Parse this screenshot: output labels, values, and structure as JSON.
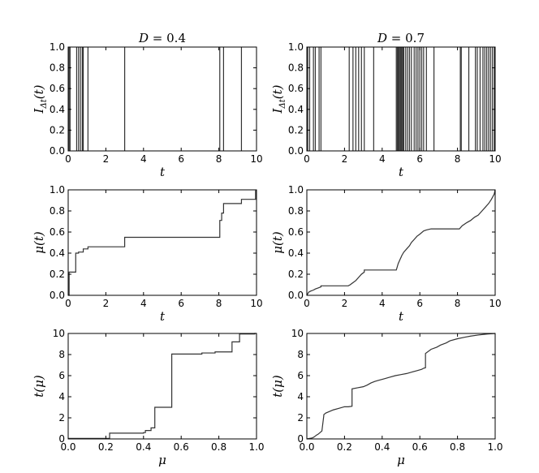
{
  "figure": {
    "line_color": "#333333",
    "background": "#ffffff"
  },
  "chart_data": [
    {
      "id": "top-left",
      "type": "line",
      "title": "D = 0.4",
      "title_var": "D",
      "title_rest": " = 0.4",
      "xlabel": "t",
      "ylabel": "IΔt(t)",
      "xlim": [
        0,
        10
      ],
      "ylim": [
        0,
        1
      ],
      "xticks": [
        0,
        2,
        4,
        6,
        8,
        10
      ],
      "xtick_labels": [
        "0",
        "2",
        "4",
        "6",
        "8",
        "10"
      ],
      "yticks": [
        0,
        0.2,
        0.4,
        0.6,
        0.8,
        1
      ],
      "ytick_labels": [
        "0.0",
        "0.2",
        "0.4",
        "0.6",
        "0.8",
        "1.0"
      ],
      "spikes": [
        0.05,
        0.1,
        0.45,
        0.55,
        0.65,
        0.75,
        0.8,
        1.05,
        3.0,
        8.05,
        8.25,
        9.2
      ],
      "grid": false,
      "legend": "none"
    },
    {
      "id": "top-right",
      "type": "line",
      "title": "D = 0.7",
      "title_var": "D",
      "title_rest": " = 0.7",
      "xlabel": "t",
      "ylabel": "IΔt(t)",
      "xlim": [
        0,
        10
      ],
      "ylim": [
        0,
        1
      ],
      "xticks": [
        0,
        2,
        4,
        6,
        8,
        10
      ],
      "xtick_labels": [
        "0",
        "2",
        "4",
        "6",
        "8",
        "10"
      ],
      "yticks": [
        0,
        0.2,
        0.4,
        0.6,
        0.8,
        1
      ],
      "ytick_labels": [
        "0.0",
        "0.2",
        "0.4",
        "0.6",
        "0.8",
        "1.0"
      ],
      "spikes": [
        0.05,
        0.15,
        0.35,
        0.45,
        0.65,
        0.75,
        2.25,
        2.45,
        2.6,
        2.75,
        2.9,
        3.05,
        3.55,
        4.75,
        4.8,
        4.85,
        4.9,
        4.95,
        5.0,
        5.05,
        5.1,
        5.15,
        5.25,
        5.35,
        5.45,
        5.55,
        5.7,
        5.8,
        5.9,
        6.0,
        6.1,
        6.2,
        6.35,
        6.75,
        8.15,
        8.2,
        8.6,
        8.95,
        9.05,
        9.2,
        9.35,
        9.45,
        9.55,
        9.65,
        9.75,
        9.85,
        9.95
      ],
      "grid": false,
      "legend": "none"
    },
    {
      "id": "mid-left",
      "type": "line",
      "xlabel": "t",
      "ylabel": "μ(t)",
      "xlim": [
        0,
        10
      ],
      "ylim": [
        0,
        1
      ],
      "xticks": [
        0,
        2,
        4,
        6,
        8,
        10
      ],
      "xtick_labels": [
        "0",
        "2",
        "4",
        "6",
        "8",
        "10"
      ],
      "yticks": [
        0,
        0.2,
        0.4,
        0.6,
        0.8,
        1
      ],
      "ytick_labels": [
        "0.0",
        "0.2",
        "0.4",
        "0.6",
        "0.8",
        "1.0"
      ],
      "x": [
        0,
        0.05,
        0.05,
        0.4,
        0.4,
        0.55,
        0.55,
        0.8,
        0.8,
        1.05,
        1.05,
        3.0,
        3.0,
        8.05,
        8.05,
        8.15,
        8.15,
        8.25,
        8.25,
        9.2,
        9.2,
        9.95,
        9.95,
        10
      ],
      "y": [
        0,
        0,
        0.22,
        0.22,
        0.4,
        0.4,
        0.41,
        0.41,
        0.44,
        0.44,
        0.46,
        0.46,
        0.55,
        0.55,
        0.71,
        0.71,
        0.78,
        0.78,
        0.87,
        0.87,
        0.91,
        0.91,
        0.99,
        1.0
      ],
      "grid": false,
      "legend": "none"
    },
    {
      "id": "mid-right",
      "type": "line",
      "xlabel": "t",
      "ylabel": "μ(t)",
      "xlim": [
        0,
        10
      ],
      "ylim": [
        0,
        1
      ],
      "xticks": [
        0,
        2,
        4,
        6,
        8,
        10
      ],
      "xtick_labels": [
        "0",
        "2",
        "4",
        "6",
        "8",
        "10"
      ],
      "yticks": [
        0,
        0.2,
        0.4,
        0.6,
        0.8,
        1
      ],
      "ytick_labels": [
        "0.0",
        "0.2",
        "0.4",
        "0.6",
        "0.8",
        "1.0"
      ],
      "x": [
        0,
        0.1,
        0.2,
        0.35,
        0.45,
        0.6,
        0.75,
        0.75,
        2.2,
        2.3,
        2.45,
        2.6,
        2.75,
        2.9,
        3.05,
        3.05,
        4.75,
        4.8,
        4.85,
        4.9,
        4.95,
        5.0,
        5.05,
        5.15,
        5.3,
        5.45,
        5.55,
        5.7,
        5.85,
        6.0,
        6.2,
        6.35,
        6.6,
        6.75,
        8.1,
        8.25,
        8.5,
        8.7,
        8.9,
        9.1,
        9.3,
        9.5,
        9.65,
        9.8,
        9.95,
        10
      ],
      "y": [
        0,
        0.03,
        0.04,
        0.05,
        0.06,
        0.07,
        0.08,
        0.09,
        0.09,
        0.1,
        0.12,
        0.14,
        0.17,
        0.2,
        0.22,
        0.24,
        0.24,
        0.27,
        0.3,
        0.32,
        0.34,
        0.36,
        0.38,
        0.41,
        0.44,
        0.47,
        0.5,
        0.53,
        0.56,
        0.58,
        0.61,
        0.62,
        0.63,
        0.63,
        0.63,
        0.66,
        0.69,
        0.71,
        0.74,
        0.76,
        0.8,
        0.84,
        0.87,
        0.91,
        0.96,
        1.0
      ],
      "grid": false,
      "legend": "none"
    },
    {
      "id": "bottom-left",
      "type": "line",
      "xlabel": "μ",
      "ylabel": "t(μ)",
      "xlim": [
        0,
        1
      ],
      "ylim": [
        0,
        10
      ],
      "xticks": [
        0,
        0.2,
        0.4,
        0.6,
        0.8,
        1
      ],
      "xtick_labels": [
        "0.0",
        "0.2",
        "0.4",
        "0.6",
        "0.8",
        "1.0"
      ],
      "yticks": [
        0,
        2,
        4,
        6,
        8,
        10
      ],
      "ytick_labels": [
        "0",
        "2",
        "4",
        "6",
        "8",
        "10"
      ],
      "x": [
        0,
        0.22,
        0.22,
        0.4,
        0.4,
        0.41,
        0.41,
        0.44,
        0.44,
        0.46,
        0.46,
        0.55,
        0.55,
        0.71,
        0.71,
        0.78,
        0.78,
        0.87,
        0.87,
        0.91,
        0.91,
        0.99,
        0.99,
        1.0
      ],
      "y": [
        0.05,
        0.05,
        0.55,
        0.55,
        0.6,
        0.6,
        0.8,
        0.8,
        1.05,
        1.05,
        3.0,
        3.0,
        8.05,
        8.05,
        8.15,
        8.15,
        8.25,
        8.25,
        9.2,
        9.2,
        9.95,
        9.95,
        10.0,
        10.0
      ],
      "grid": false,
      "legend": "none"
    },
    {
      "id": "bottom-right",
      "type": "line",
      "xlabel": "μ",
      "ylabel": "t(μ)",
      "xlim": [
        0,
        1
      ],
      "ylim": [
        0,
        10
      ],
      "xticks": [
        0,
        0.2,
        0.4,
        0.6,
        0.8,
        1
      ],
      "xtick_labels": [
        "0.0",
        "0.2",
        "0.4",
        "0.6",
        "0.8",
        "1.0"
      ],
      "yticks": [
        0,
        2,
        4,
        6,
        8,
        10
      ],
      "ytick_labels": [
        "0",
        "2",
        "4",
        "6",
        "8",
        "10"
      ],
      "x": [
        0,
        0.03,
        0.04,
        0.05,
        0.06,
        0.07,
        0.08,
        0.09,
        0.09,
        0.1,
        0.12,
        0.14,
        0.17,
        0.2,
        0.22,
        0.24,
        0.24,
        0.27,
        0.3,
        0.32,
        0.34,
        0.36,
        0.38,
        0.41,
        0.44,
        0.47,
        0.5,
        0.53,
        0.56,
        0.58,
        0.61,
        0.62,
        0.63,
        0.63,
        0.66,
        0.69,
        0.71,
        0.74,
        0.76,
        0.8,
        0.84,
        0.87,
        0.91,
        0.96,
        1.0
      ],
      "y": [
        0,
        0.1,
        0.2,
        0.35,
        0.45,
        0.6,
        0.75,
        2.2,
        2.3,
        2.45,
        2.6,
        2.75,
        2.9,
        3.05,
        3.05,
        3.1,
        4.75,
        4.85,
        4.95,
        5.1,
        5.3,
        5.45,
        5.55,
        5.7,
        5.85,
        6.0,
        6.1,
        6.2,
        6.35,
        6.45,
        6.6,
        6.7,
        6.75,
        8.1,
        8.5,
        8.7,
        8.9,
        9.1,
        9.3,
        9.5,
        9.65,
        9.75,
        9.85,
        9.95,
        10.0
      ],
      "grid": false,
      "legend": "none"
    }
  ]
}
